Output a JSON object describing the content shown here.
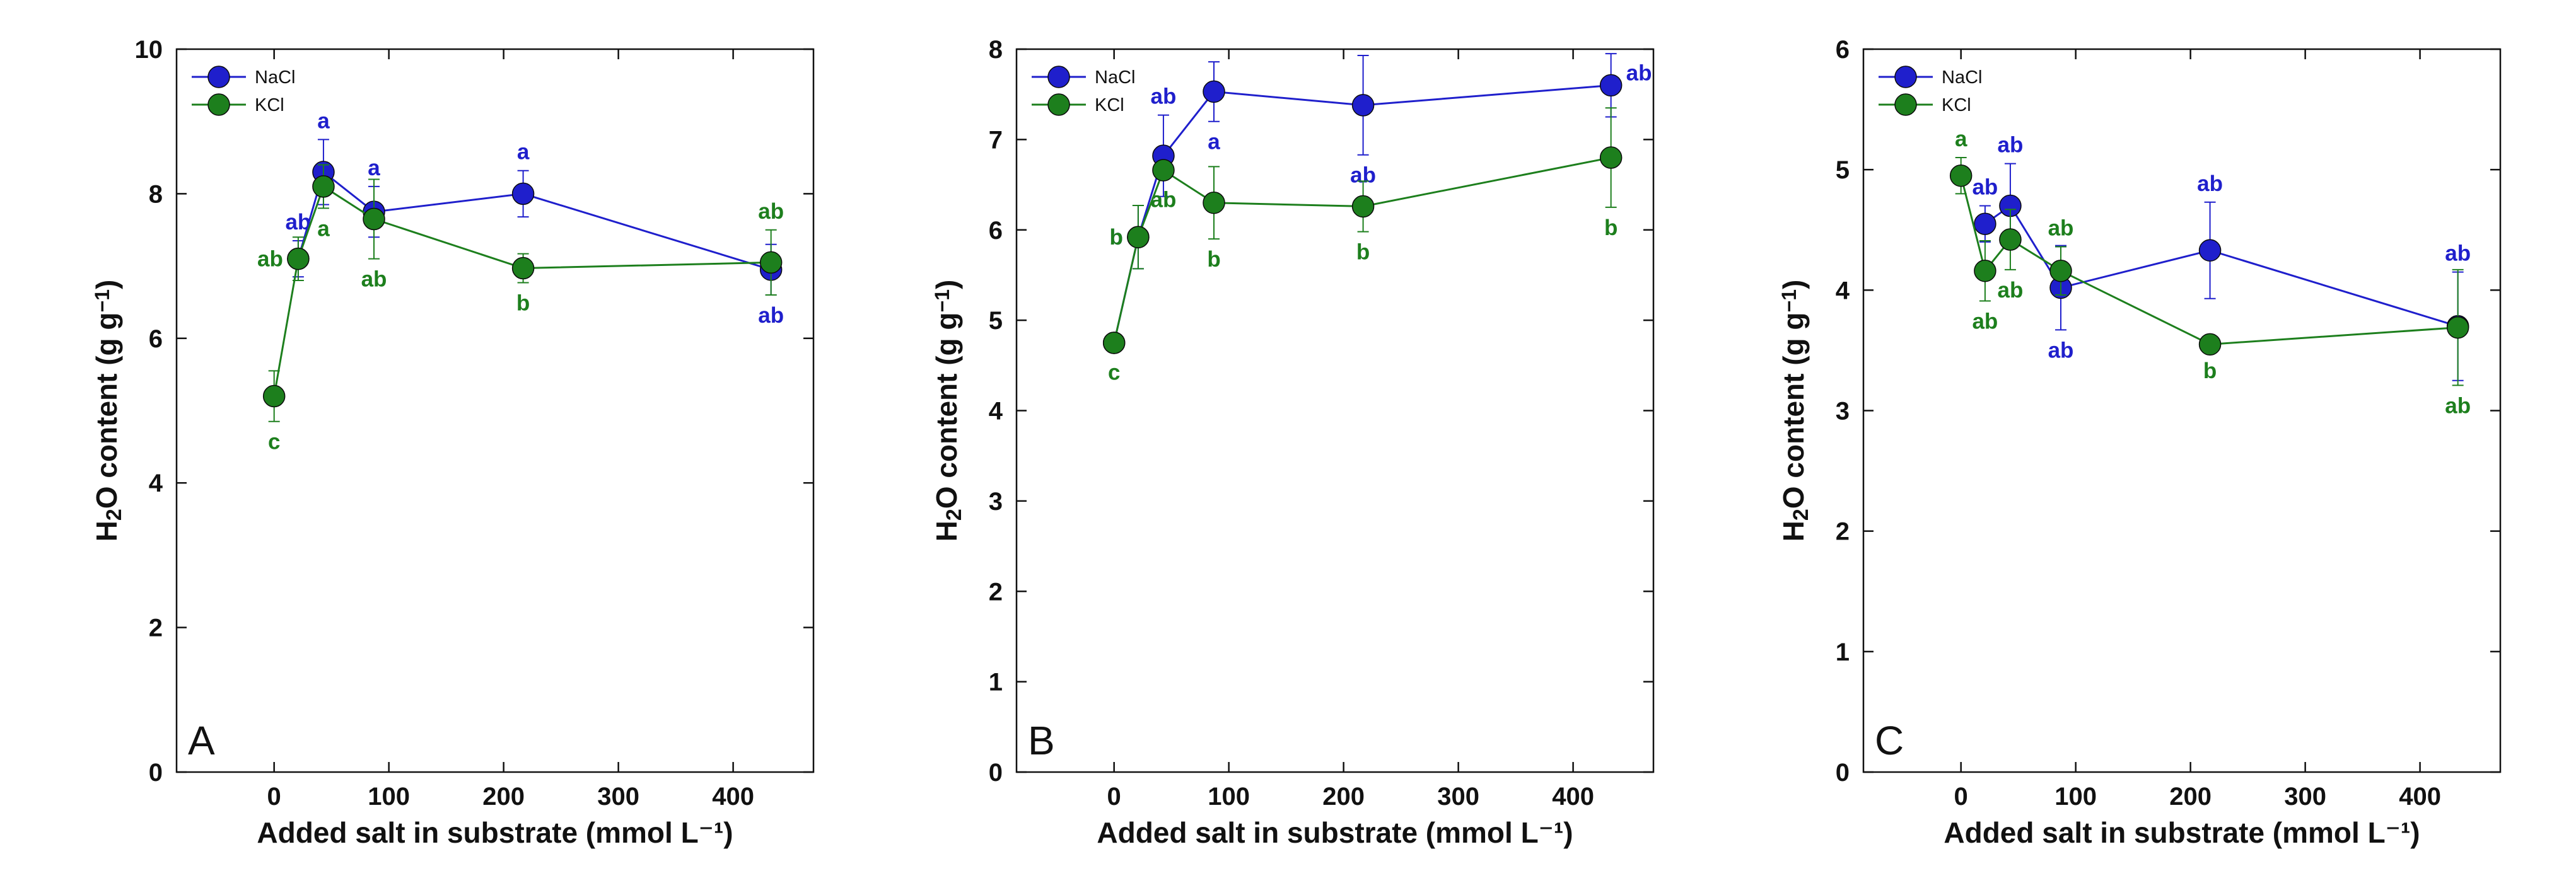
{
  "figure": {
    "background": "#ffffff",
    "axis_color": "#111111"
  },
  "series_styles": {
    "NaCl": {
      "color": "#1f1fcc"
    },
    "KCl": {
      "color": "#1d7f1d"
    }
  },
  "chart_data": [
    {
      "type": "line",
      "panel_label": "A",
      "xlabel": "Added salt in substrate (mmol L⁻¹)",
      "ylabel_main": "H",
      "ylabel_sub": "2",
      "ylabel_mid": "O content (g g",
      "ylabel_sup": "−1",
      "ylabel_end": ")",
      "xlim": [
        -85,
        470
      ],
      "ylim": [
        0,
        10
      ],
      "xticks": [
        0,
        100,
        200,
        300,
        400
      ],
      "xtick_labels": [
        "0",
        "100",
        "200",
        "300",
        "400"
      ],
      "yticks": [
        0,
        2,
        4,
        6,
        8,
        10
      ],
      "ytick_labels": [
        "0",
        "2",
        "4",
        "6",
        "8",
        "10"
      ],
      "legend": [
        "NaCl",
        "KCl"
      ],
      "series": [
        {
          "name": "NaCl",
          "x": [
            21,
            43,
            87,
            217,
            433
          ],
          "y": [
            7.1,
            8.3,
            7.75,
            8.0,
            6.95
          ],
          "err": [
            0.25,
            0.45,
            0.35,
            0.32,
            0.35
          ],
          "sig": [
            "ab",
            "a",
            "a",
            "a",
            "ab"
          ],
          "sig_pos": [
            "above",
            "above",
            "above",
            "above",
            "below"
          ]
        },
        {
          "name": "KCl",
          "x": [
            0,
            21,
            43,
            87,
            217,
            433
          ],
          "y": [
            5.2,
            7.1,
            8.1,
            7.65,
            6.97,
            7.05
          ],
          "err": [
            0.35,
            0.3,
            0.3,
            0.55,
            0.2,
            0.45
          ],
          "sig": [
            "c",
            "ab",
            "a",
            "ab",
            "b",
            "ab"
          ],
          "sig_pos": [
            "below",
            "left",
            "below",
            "below",
            "below",
            "above"
          ]
        }
      ]
    },
    {
      "type": "line",
      "panel_label": "B",
      "xlabel": "Added salt in substrate (mmol L⁻¹)",
      "ylabel_main": "H",
      "ylabel_sub": "2",
      "ylabel_mid": "O content (g g",
      "ylabel_sup": "−1",
      "ylabel_end": ")",
      "xlim": [
        -85,
        470
      ],
      "ylim": [
        0,
        8
      ],
      "xticks": [
        0,
        100,
        200,
        300,
        400
      ],
      "xtick_labels": [
        "0",
        "100",
        "200",
        "300",
        "400"
      ],
      "yticks": [
        0,
        1,
        2,
        3,
        4,
        5,
        6,
        7,
        8
      ],
      "ytick_labels": [
        "0",
        "1",
        "2",
        "3",
        "4",
        "5",
        "6",
        "7",
        "8"
      ],
      "legend": [
        "NaCl",
        "KCl"
      ],
      "series": [
        {
          "name": "NaCl",
          "x": [
            0,
            21,
            43,
            87,
            217,
            433
          ],
          "y": [
            4.75,
            5.92,
            6.82,
            7.53,
            7.38,
            7.6
          ],
          "err": [
            0.08,
            0.35,
            0.45,
            0.33,
            0.55,
            0.35
          ],
          "sig": [
            "",
            "b",
            "ab",
            "a",
            "ab",
            "ab"
          ],
          "sig_pos": [
            "none",
            "left",
            "above",
            "below",
            "below",
            "right"
          ]
        },
        {
          "name": "KCl",
          "x": [
            0,
            21,
            43,
            87,
            217,
            433
          ],
          "y": [
            4.75,
            5.92,
            6.66,
            6.3,
            6.26,
            6.8
          ],
          "err": [
            0.1,
            0.35,
            0.1,
            0.4,
            0.28,
            0.55
          ],
          "sig": [
            "c",
            "b",
            "ab",
            "b",
            "b",
            "b"
          ],
          "sig_pos": [
            "below",
            "left",
            "below",
            "below",
            "below",
            "below"
          ]
        }
      ]
    },
    {
      "type": "line",
      "panel_label": "C",
      "xlabel": "Added salt in substrate (mmol L⁻¹)",
      "ylabel_main": "H",
      "ylabel_sub": "2",
      "ylabel_mid": "O content (g g",
      "ylabel_sup": "−1",
      "ylabel_end": ")",
      "xlim": [
        -85,
        470
      ],
      "ylim": [
        0,
        6
      ],
      "xticks": [
        0,
        100,
        200,
        300,
        400
      ],
      "xtick_labels": [
        "0",
        "100",
        "200",
        "300",
        "400"
      ],
      "yticks": [
        0,
        1,
        2,
        3,
        4,
        5,
        6
      ],
      "ytick_labels": [
        "0",
        "1",
        "2",
        "3",
        "4",
        "5",
        "6"
      ],
      "legend": [
        "NaCl",
        "KCl"
      ],
      "series": [
        {
          "name": "NaCl",
          "x": [
            21,
            43,
            87,
            217,
            433
          ],
          "y": [
            4.55,
            4.7,
            4.02,
            4.33,
            3.7
          ],
          "err": [
            0.15,
            0.35,
            0.35,
            0.4,
            0.45
          ],
          "sig": [
            "ab",
            "ab",
            "ab",
            "ab",
            "ab"
          ],
          "sig_pos": [
            "above",
            "above",
            "below",
            "above",
            "above"
          ]
        },
        {
          "name": "KCl",
          "x": [
            0,
            21,
            43,
            87,
            217,
            433
          ],
          "y": [
            4.95,
            4.16,
            4.42,
            4.16,
            3.55,
            3.69
          ],
          "err": [
            0.15,
            0.25,
            0.25,
            0.2,
            0.05,
            0.48
          ],
          "sig": [
            "a",
            "ab",
            "ab",
            "ab",
            "b",
            "ab"
          ],
          "sig_pos": [
            "above",
            "below",
            "below",
            "above",
            "below",
            "below"
          ]
        }
      ]
    }
  ]
}
